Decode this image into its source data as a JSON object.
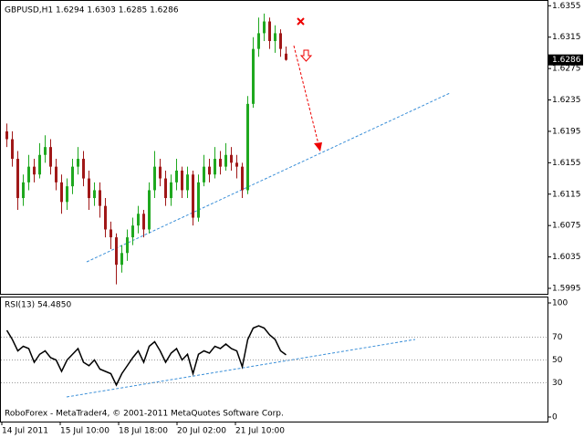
{
  "chart_data": [
    {
      "type": "candlestick",
      "title": "GBPUSD,H1  1.6294 1.6303 1.6285 1.6286",
      "open": [
        1.6195,
        1.6185,
        1.616,
        1.611,
        1.613,
        1.615,
        1.614,
        1.6165,
        1.6175,
        1.615,
        1.613,
        1.6105,
        1.6125,
        1.615,
        1.616,
        1.6135,
        1.611,
        1.612,
        1.61,
        1.607,
        1.606,
        1.6025,
        1.604,
        1.606,
        1.6075,
        1.609,
        1.607,
        1.612,
        1.615,
        1.6135,
        1.611,
        1.613,
        1.6145,
        1.612,
        1.614,
        1.6085,
        1.613,
        1.615,
        1.614,
        1.616,
        1.615,
        1.6165,
        1.6155,
        1.615,
        1.612,
        1.623,
        1.63,
        1.632,
        1.6335,
        1.631,
        1.632,
        1.6294
      ],
      "high": [
        1.6205,
        1.6195,
        1.617,
        1.614,
        1.6165,
        1.616,
        1.618,
        1.619,
        1.6185,
        1.616,
        1.614,
        1.6135,
        1.616,
        1.6175,
        1.617,
        1.6145,
        1.613,
        1.613,
        1.611,
        1.608,
        1.6065,
        1.605,
        1.607,
        1.6085,
        1.61,
        1.6095,
        1.613,
        1.617,
        1.616,
        1.6145,
        1.614,
        1.616,
        1.615,
        1.615,
        1.6145,
        1.614,
        1.6165,
        1.616,
        1.6175,
        1.617,
        1.618,
        1.6175,
        1.6165,
        1.6155,
        1.624,
        1.6315,
        1.634,
        1.6345,
        1.634,
        1.633,
        1.6325,
        1.6303
      ],
      "low": [
        1.6175,
        1.615,
        1.6095,
        1.61,
        1.612,
        1.613,
        1.6135,
        1.6155,
        1.614,
        1.612,
        1.609,
        1.6095,
        1.6115,
        1.614,
        1.6125,
        1.6095,
        1.61,
        1.6085,
        1.606,
        1.6045,
        1.6,
        1.6015,
        1.603,
        1.605,
        1.6065,
        1.606,
        1.6065,
        1.611,
        1.6125,
        1.61,
        1.61,
        1.612,
        1.611,
        1.611,
        1.6075,
        1.608,
        1.6125,
        1.613,
        1.6135,
        1.614,
        1.6145,
        1.6145,
        1.6135,
        1.611,
        1.6115,
        1.6225,
        1.629,
        1.631,
        1.63,
        1.6295,
        1.629,
        1.6285
      ],
      "close": [
        1.6185,
        1.616,
        1.611,
        1.613,
        1.615,
        1.614,
        1.6165,
        1.6175,
        1.615,
        1.613,
        1.6105,
        1.6125,
        1.615,
        1.616,
        1.6135,
        1.611,
        1.612,
        1.61,
        1.607,
        1.606,
        1.6025,
        1.604,
        1.606,
        1.6075,
        1.609,
        1.607,
        1.612,
        1.615,
        1.6135,
        1.611,
        1.613,
        1.6145,
        1.612,
        1.614,
        1.6085,
        1.613,
        1.615,
        1.614,
        1.616,
        1.615,
        1.6165,
        1.6155,
        1.615,
        1.612,
        1.623,
        1.63,
        1.632,
        1.6335,
        1.631,
        1.632,
        1.63,
        1.6286
      ],
      "up_color": "#1fa81f",
      "down_color": "#a01818",
      "ylim": [
        1.5988,
        1.636
      ],
      "yticks": [
        1.6355,
        1.6315,
        1.6275,
        1.6235,
        1.6195,
        1.6155,
        1.6115,
        1.6075,
        1.6035,
        1.5995
      ],
      "current_price": 1.6286,
      "x_labels": [
        "14 Jul 2011",
        "15 Jul 10:00",
        "18 Jul 18:00",
        "20 Jul 02:00",
        "21 Jul 10:00"
      ],
      "footer": "RoboForex - MetaTrader4, © 2001-2011 MetaQuotes Software Corp."
    },
    {
      "type": "line",
      "title": "RSI(13) 54.4850",
      "color": "#000000",
      "values": [
        76,
        68,
        58,
        62,
        60,
        48,
        55,
        58,
        52,
        50,
        40,
        50,
        55,
        60,
        48,
        45,
        50,
        42,
        40,
        38,
        28,
        38,
        45,
        52,
        58,
        48,
        62,
        66,
        58,
        48,
        56,
        60,
        50,
        55,
        38,
        55,
        58,
        56,
        62,
        60,
        64,
        60,
        58,
        44,
        68,
        78,
        80,
        78,
        72,
        68,
        58,
        54.485
      ],
      "ylim": [
        0,
        100
      ],
      "yticks": [
        100,
        70,
        50,
        30,
        0
      ]
    }
  ]
}
